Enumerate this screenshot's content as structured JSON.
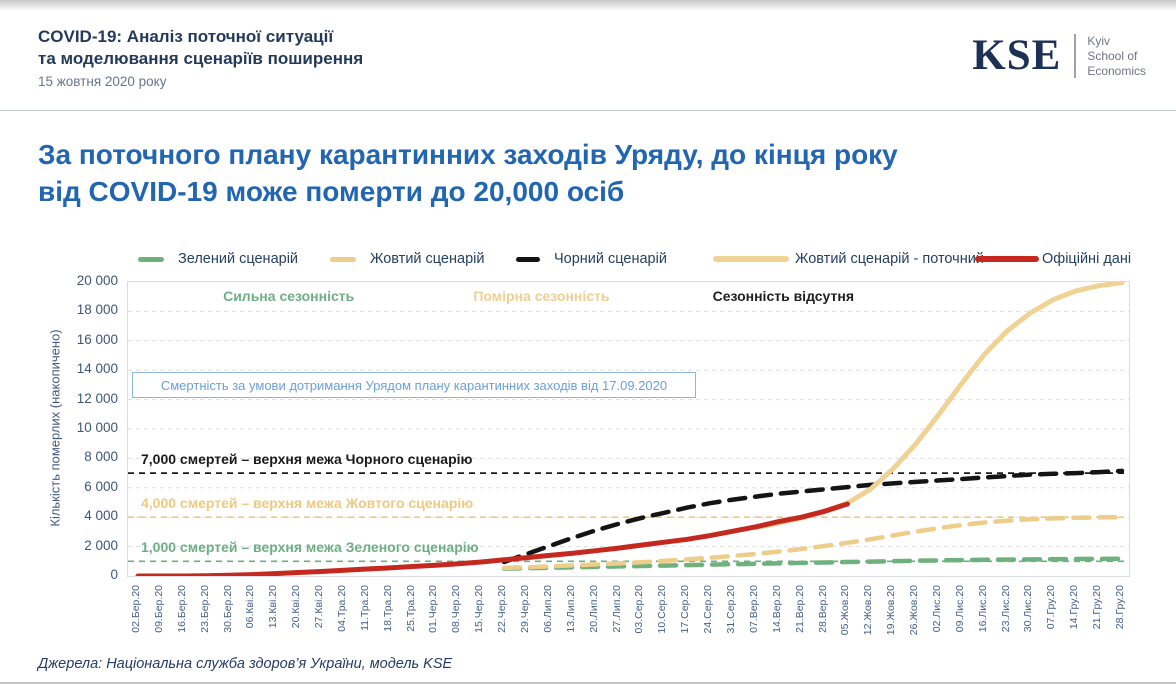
{
  "header": {
    "title_line1": "COVID-19: Аналіз поточної ситуації",
    "title_line2": "та моделювання сценаріїв поширення",
    "date": "15 жовтня 2020 року",
    "logo": {
      "acronym": "KSE",
      "name_lines": [
        "Kyiv",
        "School of",
        "Economics"
      ]
    }
  },
  "main_title_line1": "За поточного плану карантинних заходів Уряду, до кінця року",
  "main_title_line2": "від COVID-19 може померти до 20,000 осіб",
  "footer": "Джерела: Національна служба здоров’я України, модель KSE",
  "colors": {
    "title_blue": "#2265b0",
    "header_navy": "#253a5a",
    "green": "#6fb17d",
    "yellow": "#eecd8b",
    "yellow_solid": "#f0d394",
    "black": "#141414",
    "red": "#c4281e",
    "annotation_blue": "#6aa0d8",
    "grid": "#dcdee2"
  },
  "chart_data": {
    "type": "line",
    "title": "",
    "xlabel": "",
    "ylabel": "Кількість померлих (накопичено)",
    "ylim": [
      0,
      20000
    ],
    "ytick_step": 2000,
    "ytick_labels": [
      "20 000",
      "18 000",
      "16 000",
      "14 000",
      "12 000",
      "10 000",
      "8 000",
      "6 000",
      "4 000",
      "2 000",
      "0"
    ],
    "grid": true,
    "legend_position": "top",
    "x": [
      "02.Бер.20",
      "09.Бер.20",
      "16.Бер.20",
      "23.Бер.20",
      "30.Бер.20",
      "06.Кві.20",
      "13.Кві.20",
      "20.Кві.20",
      "27.Кві.20",
      "04.Тра.20",
      "11.Тра.20",
      "18.Тра.20",
      "25.Тра.20",
      "01.Чер.20",
      "08.Чер.20",
      "15.Чер.20",
      "22.Чер.20",
      "29.Чер.20",
      "06.Лип.20",
      "13.Лип.20",
      "20.Лип.20",
      "27.Лип.20",
      "03.Сер.20",
      "10.Сер.20",
      "17.Сер.20",
      "24.Сер.20",
      "31.Сер.20",
      "07.Вер.20",
      "14.Вер.20",
      "21.Вер.20",
      "28.Вер.20",
      "05.Жов.20",
      "12.Жов.20",
      "19.Жов.20",
      "26.Жов.20",
      "02.Лис.20",
      "09.Лис.20",
      "16.Лис.20",
      "23.Лис.20",
      "30.Лис.20",
      "07.Гру.20",
      "14.Гру.20",
      "21.Гру.20",
      "28.Гру.20"
    ],
    "series": [
      {
        "name": "Зелений сценарій",
        "style": "dashed",
        "color": "#6fb17d",
        "values": [
          null,
          null,
          null,
          null,
          null,
          null,
          null,
          null,
          null,
          null,
          null,
          null,
          null,
          null,
          null,
          null,
          500,
          530,
          560,
          590,
          620,
          650,
          680,
          710,
          740,
          770,
          800,
          830,
          860,
          890,
          920,
          950,
          980,
          1010,
          1040,
          1060,
          1080,
          1100,
          1115,
          1130,
          1145,
          1155,
          1165,
          1175
        ]
      },
      {
        "name": "Жовтий сценарій",
        "style": "dashed",
        "color": "#eecd8b",
        "values": [
          null,
          null,
          null,
          null,
          null,
          null,
          null,
          null,
          null,
          null,
          null,
          null,
          null,
          null,
          null,
          null,
          550,
          600,
          660,
          720,
          790,
          860,
          940,
          1030,
          1130,
          1240,
          1360,
          1500,
          1660,
          1840,
          2040,
          2260,
          2500,
          2760,
          3020,
          3260,
          3470,
          3640,
          3770,
          3860,
          3920,
          3960,
          3985,
          4000
        ]
      },
      {
        "name": "Чорний сценарій",
        "style": "dashed",
        "color": "#141414",
        "values": [
          null,
          null,
          null,
          null,
          null,
          null,
          null,
          null,
          null,
          null,
          null,
          null,
          null,
          null,
          null,
          null,
          950,
          1500,
          2050,
          2600,
          3100,
          3550,
          3950,
          4300,
          4650,
          4950,
          5200,
          5400,
          5600,
          5750,
          5900,
          6050,
          6200,
          6300,
          6400,
          6500,
          6600,
          6700,
          6800,
          6900,
          6950,
          7000,
          7070,
          7150
        ]
      },
      {
        "name": "Жовтий сценарій - поточний",
        "style": "solid",
        "color": "#f0d394",
        "values": [
          null,
          null,
          null,
          null,
          null,
          null,
          null,
          null,
          null,
          null,
          null,
          null,
          null,
          null,
          null,
          null,
          null,
          null,
          null,
          null,
          null,
          null,
          null,
          null,
          null,
          null,
          null,
          3300,
          3600,
          3950,
          4400,
          4950,
          5900,
          7300,
          9000,
          11000,
          13100,
          15100,
          16700,
          17900,
          18800,
          19400,
          19750,
          19950
        ]
      },
      {
        "name": "Офіційні дані",
        "style": "solid",
        "color": "#c4281e",
        "values": [
          0,
          1,
          3,
          17,
          45,
          98,
          161,
          239,
          308,
          387,
          476,
          554,
          645,
          730,
          830,
          950,
          1100,
          1250,
          1400,
          1550,
          1720,
          1900,
          2100,
          2300,
          2500,
          2750,
          3050,
          3350,
          3700,
          4000,
          4400,
          4900,
          null,
          null,
          null,
          null,
          null,
          null,
          null,
          null,
          null,
          null,
          null,
          null
        ]
      }
    ],
    "thresholds": [
      {
        "value": 7000,
        "label": "7,000 смертей – верхня межа Чорного сценарію",
        "color": "#1a1a1a"
      },
      {
        "value": 4000,
        "label": "4,000 смертей – верхня межа Жовтого сценарію",
        "color": "#ecca7f"
      },
      {
        "value": 1000,
        "label": "1,000 смертей – верхня межа Зеленого сценарію",
        "color": "#6fae85"
      }
    ],
    "region_labels": [
      {
        "text": "Сильна сезонність",
        "color": "#6fae85",
        "x_pct": 9.5
      },
      {
        "text": "Помірна сезонність",
        "color": "#edd092",
        "x_pct": 34.5
      },
      {
        "text": "Сезонність відсутня",
        "color": "#1f1f1f",
        "x_pct": 58.4
      }
    ],
    "annotation_box": "Смертність за умови дотримання Урядом плану карантинних заходів від 17.09.2020"
  }
}
